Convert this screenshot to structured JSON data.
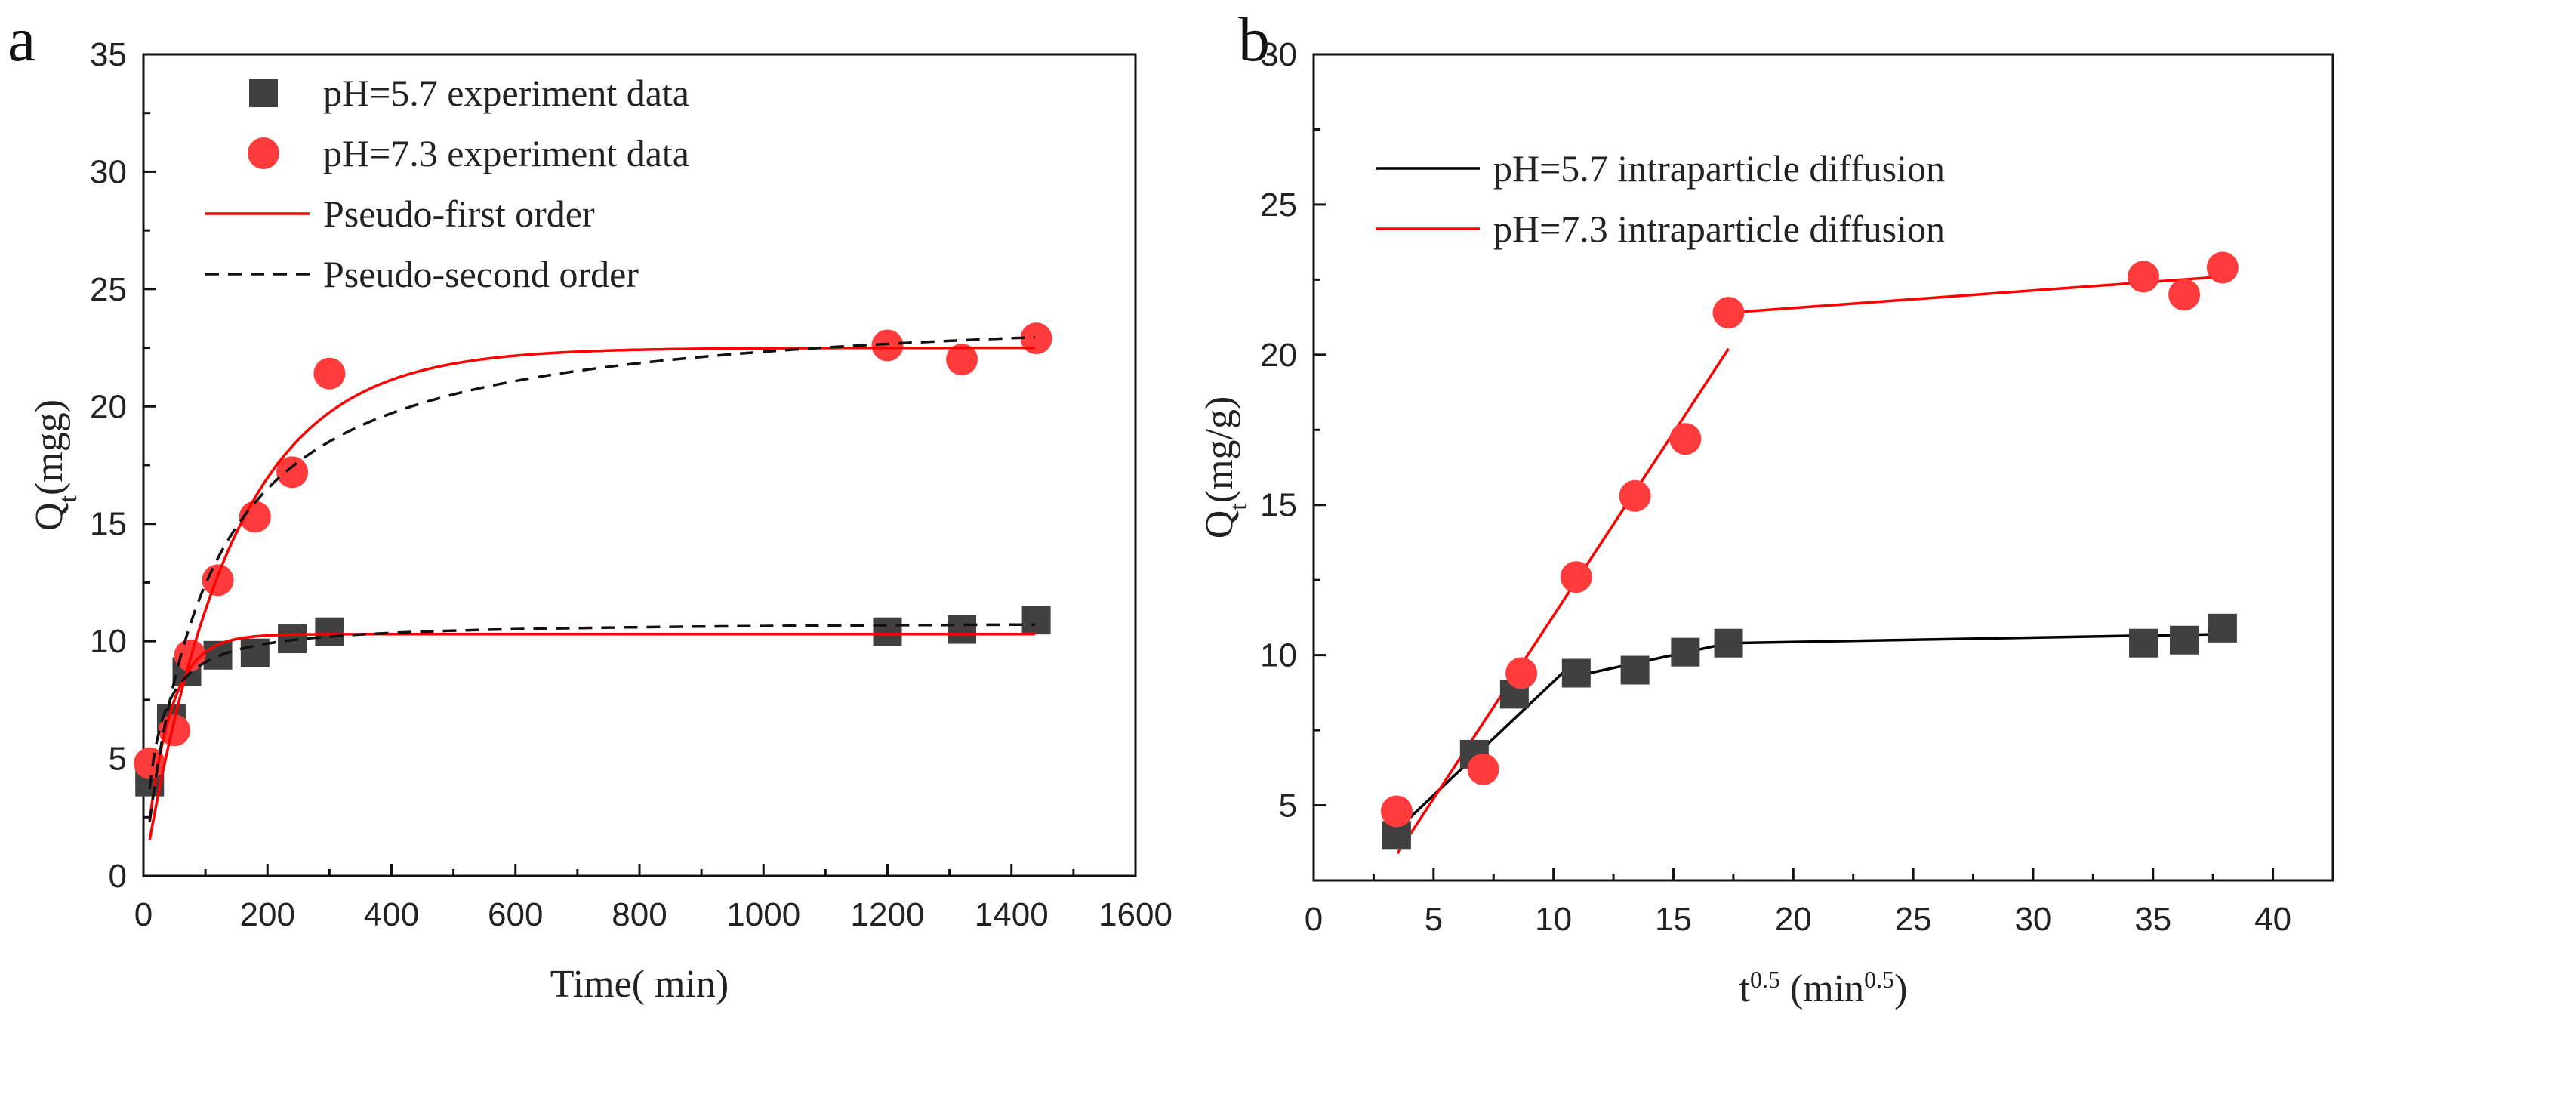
{
  "chart_data": [
    {
      "panel_label": "a",
      "type": "scatter",
      "xlabel_parts": [
        {
          "t": "Time( min)"
        }
      ],
      "ylabel_parts": [
        {
          "t": "Q"
        },
        {
          "t": "t",
          "sub": true
        },
        {
          "t": "(mgg)"
        }
      ],
      "xlim": [
        0,
        1600
      ],
      "ylim": [
        0,
        35
      ],
      "xticks": [
        0,
        200,
        400,
        600,
        800,
        1000,
        1200,
        1400,
        1600
      ],
      "yticks": [
        0,
        5,
        10,
        15,
        20,
        25,
        30,
        35
      ],
      "grid": false,
      "legend_position": "top-left",
      "series": [
        {
          "name": "pH=5.7 experiment data",
          "kind": "square",
          "color": "#404040",
          "x": [
            10,
            45,
            70,
            120,
            180,
            240,
            300,
            1200,
            1320,
            1440
          ],
          "y": [
            4.0,
            6.7,
            8.7,
            9.4,
            9.5,
            10.1,
            10.4,
            10.4,
            10.5,
            10.9
          ]
        },
        {
          "name": "pH=7.3 experiment data",
          "kind": "circle",
          "color": "#ff3b3b",
          "x": [
            10,
            50,
            75,
            120,
            180,
            240,
            300,
            1200,
            1320,
            1440
          ],
          "y": [
            4.8,
            6.2,
            9.4,
            12.6,
            15.3,
            17.2,
            21.4,
            22.6,
            22.0,
            22.9
          ]
        },
        {
          "name": "Pseudo-first order",
          "kind": "line",
          "color": "#ff0000",
          "model": "pfo",
          "curves": [
            {
              "qe": 10.3,
              "k": 0.026
            },
            {
              "qe": 22.5,
              "k": 0.007
            }
          ],
          "t_range": [
            10,
            1440
          ]
        },
        {
          "name": "Pseudo-second order",
          "kind": "dash",
          "color": "#111111",
          "model": "pso",
          "curves": [
            {
              "qe": 10.85,
              "k": 0.0048
            },
            {
              "qe": 24.5,
              "k": 0.00042
            }
          ],
          "t_range": [
            10,
            1440
          ]
        }
      ]
    },
    {
      "panel_label": "b",
      "type": "scatter",
      "xlabel_parts": [
        {
          "t": "t"
        },
        {
          "t": "0.5",
          "sup": true
        },
        {
          "t": " (min"
        },
        {
          "t": "0.5",
          "sup": true
        },
        {
          "t": ")"
        }
      ],
      "ylabel_parts": [
        {
          "t": "Q"
        },
        {
          "t": "t",
          "sub": true
        },
        {
          "t": "(mg/g)"
        }
      ],
      "xlim": [
        0,
        42.5
      ],
      "ylim": [
        2.5,
        30
      ],
      "xticks": [
        0,
        5,
        10,
        15,
        20,
        25,
        30,
        35,
        40
      ],
      "yticks": [
        5,
        10,
        15,
        20,
        25,
        30
      ],
      "grid": false,
      "legend_position": "top-left",
      "series": [
        {
          "name": "pH=5.7 intraparticle diffusion",
          "kind": "segments",
          "color": "#000000",
          "segments": [
            [
              [
                3.5,
                4.2
              ],
              [
                10.9,
                9.8
              ]
            ],
            [
              [
                10.9,
                9.3
              ],
              [
                17.3,
                10.4
              ]
            ],
            [
              [
                17.3,
                10.4
              ],
              [
                37.9,
                10.7
              ]
            ]
          ]
        },
        {
          "name": "pH=7.3 intraparticle diffusion",
          "kind": "segments",
          "color": "#ff0000",
          "segments": [
            [
              [
                3.5,
                3.4
              ],
              [
                17.3,
                20.2
              ]
            ],
            [
              [
                17.3,
                21.4
              ],
              [
                37.9,
                22.6
              ]
            ]
          ]
        },
        {
          "name": "pH=5.7 data",
          "kind": "square",
          "color": "#404040",
          "legend": false,
          "x": [
            3.46,
            6.7,
            8.37,
            10.95,
            13.4,
            15.5,
            17.3,
            34.6,
            36.3,
            37.9
          ],
          "y": [
            4.0,
            6.7,
            8.7,
            9.4,
            9.5,
            10.1,
            10.4,
            10.4,
            10.5,
            10.9
          ]
        },
        {
          "name": "pH=7.3 data",
          "kind": "circle",
          "color": "#ff3b3b",
          "legend": false,
          "x": [
            3.46,
            7.07,
            8.66,
            10.95,
            13.4,
            15.5,
            17.3,
            34.6,
            36.3,
            37.9
          ],
          "y": [
            4.8,
            6.2,
            9.4,
            12.6,
            15.3,
            17.2,
            21.4,
            22.6,
            22.0,
            22.9
          ]
        }
      ]
    }
  ]
}
